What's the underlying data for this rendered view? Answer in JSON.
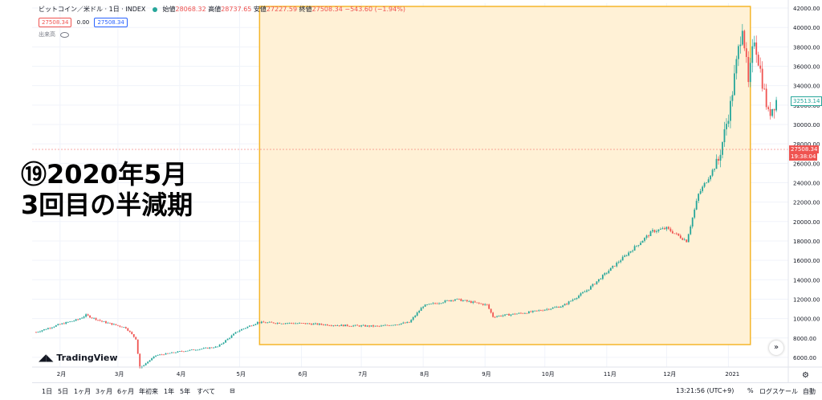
{
  "header": {
    "symbol": "ビットコイン／米ドル · 1日 · INDEX",
    "open_label": "始値",
    "open": "28068.32",
    "high_label": "高値",
    "high": "28737.65",
    "low_label": "安値",
    "low": "27227.59",
    "close_label": "終値",
    "close": "27508.34",
    "change": "−543.60 (−1.94%)"
  },
  "row2": {
    "price_red": "27508.34",
    "zero": "0.00",
    "price_blue": "27508.34"
  },
  "row3": {
    "volume_label": "出来高"
  },
  "overlay": {
    "line1": "⑲2020年5月",
    "line2": "3回目の半減期"
  },
  "logo": {
    "text": "TradingView"
  },
  "price_tags": {
    "last": "27508.34",
    "countdown": "19:38:04",
    "hover": "32513.14"
  },
  "bottom_bar": {
    "ranges": [
      "1日",
      "5日",
      "1ヶ月",
      "3ヶ月",
      "6ヶ月",
      "年初来",
      "1年",
      "5年",
      "すべて"
    ],
    "time": "13:21:56 (UTC+9)",
    "percent": "%",
    "log": "ログスケール",
    "auto": "自動"
  },
  "colors": {
    "up": "#26a69a",
    "down": "#ef5350",
    "highlight_fill": "#fff1d6",
    "highlight_border": "#f5b62a"
  },
  "chart_data": {
    "type": "candlestick",
    "x_ticks": [
      "2月",
      "3月",
      "4月",
      "5月",
      "6月",
      "7月",
      "8月",
      "9月",
      "10月",
      "11月",
      "12月",
      "2021"
    ],
    "y_ticks": [
      6000,
      8000,
      10000,
      12000,
      14000,
      16000,
      18000,
      20000,
      22000,
      24000,
      26000,
      28000,
      30000,
      32000,
      34000,
      36000,
      38000,
      40000,
      42000
    ],
    "ylim": [
      5000,
      42500
    ],
    "close_points": [
      {
        "x": "2020-01-20",
        "y": 8600
      },
      {
        "x": "2020-01-31",
        "y": 9350
      },
      {
        "x": "2020-02-10",
        "y": 9900
      },
      {
        "x": "2020-02-14",
        "y": 10350
      },
      {
        "x": "2020-02-22",
        "y": 9700
      },
      {
        "x": "2020-03-05",
        "y": 9050
      },
      {
        "x": "2020-03-10",
        "y": 7900
      },
      {
        "x": "2020-03-12",
        "y": 4900
      },
      {
        "x": "2020-03-20",
        "y": 6200
      },
      {
        "x": "2020-04-01",
        "y": 6600
      },
      {
        "x": "2020-04-20",
        "y": 7100
      },
      {
        "x": "2020-04-30",
        "y": 8700
      },
      {
        "x": "2020-05-10",
        "y": 9600
      },
      {
        "x": "2020-06-01",
        "y": 9500
      },
      {
        "x": "2020-06-20",
        "y": 9300
      },
      {
        "x": "2020-07-10",
        "y": 9200
      },
      {
        "x": "2020-07-25",
        "y": 9600
      },
      {
        "x": "2020-08-01",
        "y": 11300
      },
      {
        "x": "2020-08-17",
        "y": 12000
      },
      {
        "x": "2020-09-02",
        "y": 11400
      },
      {
        "x": "2020-09-05",
        "y": 10200
      },
      {
        "x": "2020-09-25",
        "y": 10700
      },
      {
        "x": "2020-10-10",
        "y": 11300
      },
      {
        "x": "2020-10-22",
        "y": 12900
      },
      {
        "x": "2020-11-05",
        "y": 15500
      },
      {
        "x": "2020-11-24",
        "y": 19000
      },
      {
        "x": "2020-12-01",
        "y": 19300
      },
      {
        "x": "2020-12-11",
        "y": 18000
      },
      {
        "x": "2020-12-17",
        "y": 22800
      },
      {
        "x": "2020-12-27",
        "y": 26300
      },
      {
        "x": "2021-01-02",
        "y": 32000
      },
      {
        "x": "2021-01-08",
        "y": 40500
      },
      {
        "x": "2021-01-11",
        "y": 34000
      },
      {
        "x": "2021-01-14",
        "y": 39000
      },
      {
        "x": "2021-01-21",
        "y": 31000
      },
      {
        "x": "2021-01-25",
        "y": 32500
      }
    ],
    "highlight_range": {
      "x_start": "2020-05-11",
      "x_end": "2021-01-12"
    }
  }
}
